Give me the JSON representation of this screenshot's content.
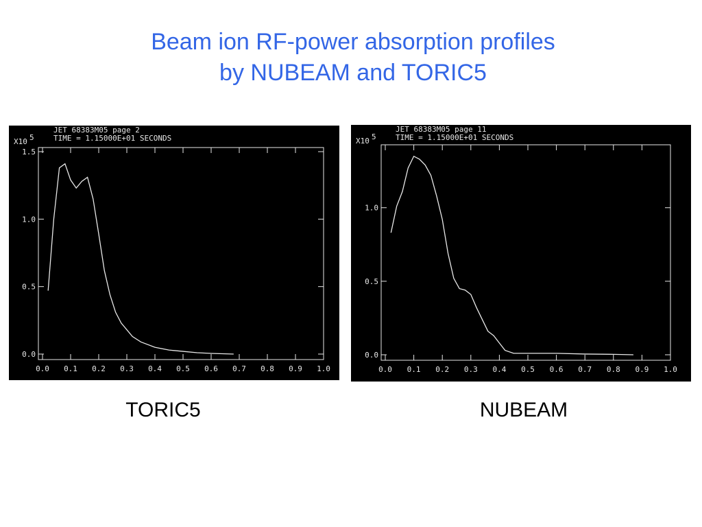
{
  "slide": {
    "title": [
      "Beam ion RF-power absorption profiles",
      "by NUBEAM and TORIC5"
    ],
    "captions": [
      "TORIC5",
      "NUBEAM"
    ]
  },
  "chart_data": [
    {
      "type": "line",
      "header": [
        "JET 68383M05 page 2",
        "TIME = 1.15000E+01 SECONDS"
      ],
      "y_multiplier": "X10",
      "y_exponent": "5",
      "x": [
        0.02,
        0.04,
        0.06,
        0.08,
        0.1,
        0.12,
        0.14,
        0.16,
        0.18,
        0.2,
        0.22,
        0.24,
        0.26,
        0.28,
        0.3,
        0.32,
        0.35,
        0.4,
        0.45,
        0.5,
        0.55,
        0.6,
        0.65,
        0.68
      ],
      "series": [
        {
          "color": "#e8e8e8",
          "values": [
            0.47,
            1.0,
            1.38,
            1.41,
            1.29,
            1.23,
            1.28,
            1.31,
            1.15,
            0.89,
            0.62,
            0.44,
            0.31,
            0.23,
            0.18,
            0.13,
            0.09,
            0.05,
            0.03,
            0.02,
            0.01,
            0.005,
            0.002,
            0
          ]
        }
      ],
      "xlim": [
        0,
        1
      ],
      "ylim": [
        0,
        1.5
      ],
      "xticks": [
        {
          "value": 0,
          "label": "0.0"
        },
        {
          "value": 0.1,
          "label": "0.1"
        },
        {
          "value": 0.2,
          "label": "0.2"
        },
        {
          "value": 0.3,
          "label": "0.3"
        },
        {
          "value": 0.4,
          "label": "0.4"
        },
        {
          "value": 0.5,
          "label": "0.5"
        },
        {
          "value": 0.6,
          "label": "0.6"
        },
        {
          "value": 0.7,
          "label": "0.7"
        },
        {
          "value": 0.8,
          "label": "0.8"
        },
        {
          "value": 0.9,
          "label": "0.9"
        },
        {
          "value": 1,
          "label": "1.0"
        }
      ],
      "yticks": [
        {
          "value": 0,
          "label": "0.0"
        },
        {
          "value": 0.5,
          "label": "0.5"
        },
        {
          "value": 1,
          "label": "1.0"
        },
        {
          "value": 1.5,
          "label": "1.5"
        }
      ]
    },
    {
      "type": "line",
      "header": [
        "JET 68383M05 page 11",
        "TIME = 1.15000E+01 SECONDS"
      ],
      "y_multiplier": "X10",
      "y_exponent": "5",
      "x": [
        0.02,
        0.04,
        0.06,
        0.08,
        0.1,
        0.12,
        0.14,
        0.16,
        0.18,
        0.2,
        0.22,
        0.24,
        0.26,
        0.28,
        0.3,
        0.32,
        0.34,
        0.36,
        0.38,
        0.4,
        0.42,
        0.45,
        0.5,
        0.6,
        0.7,
        0.8,
        0.87
      ],
      "series": [
        {
          "color": "#e8e8e8",
          "values": [
            0.83,
            1.01,
            1.11,
            1.27,
            1.35,
            1.33,
            1.29,
            1.22,
            1.08,
            0.92,
            0.69,
            0.52,
            0.45,
            0.44,
            0.41,
            0.32,
            0.24,
            0.16,
            0.13,
            0.08,
            0.03,
            0.01,
            0.01,
            0.01,
            0.005,
            0.003,
            0
          ]
        }
      ],
      "xlim": [
        0,
        1
      ],
      "ylim": [
        0,
        1.4
      ],
      "xticks": [
        {
          "value": 0,
          "label": "0.0"
        },
        {
          "value": 0.1,
          "label": "0.1"
        },
        {
          "value": 0.2,
          "label": "0.2"
        },
        {
          "value": 0.3,
          "label": "0.3"
        },
        {
          "value": 0.4,
          "label": "0.4"
        },
        {
          "value": 0.5,
          "label": "0.5"
        },
        {
          "value": 0.6,
          "label": "0.6"
        },
        {
          "value": 0.7,
          "label": "0.7"
        },
        {
          "value": 0.8,
          "label": "0.8"
        },
        {
          "value": 0.9,
          "label": "0.9"
        },
        {
          "value": 1,
          "label": "1.0"
        }
      ],
      "yticks": [
        {
          "value": 0,
          "label": "0.0"
        },
        {
          "value": 0.5,
          "label": "0.5"
        },
        {
          "value": 1,
          "label": "1.0"
        }
      ]
    }
  ]
}
